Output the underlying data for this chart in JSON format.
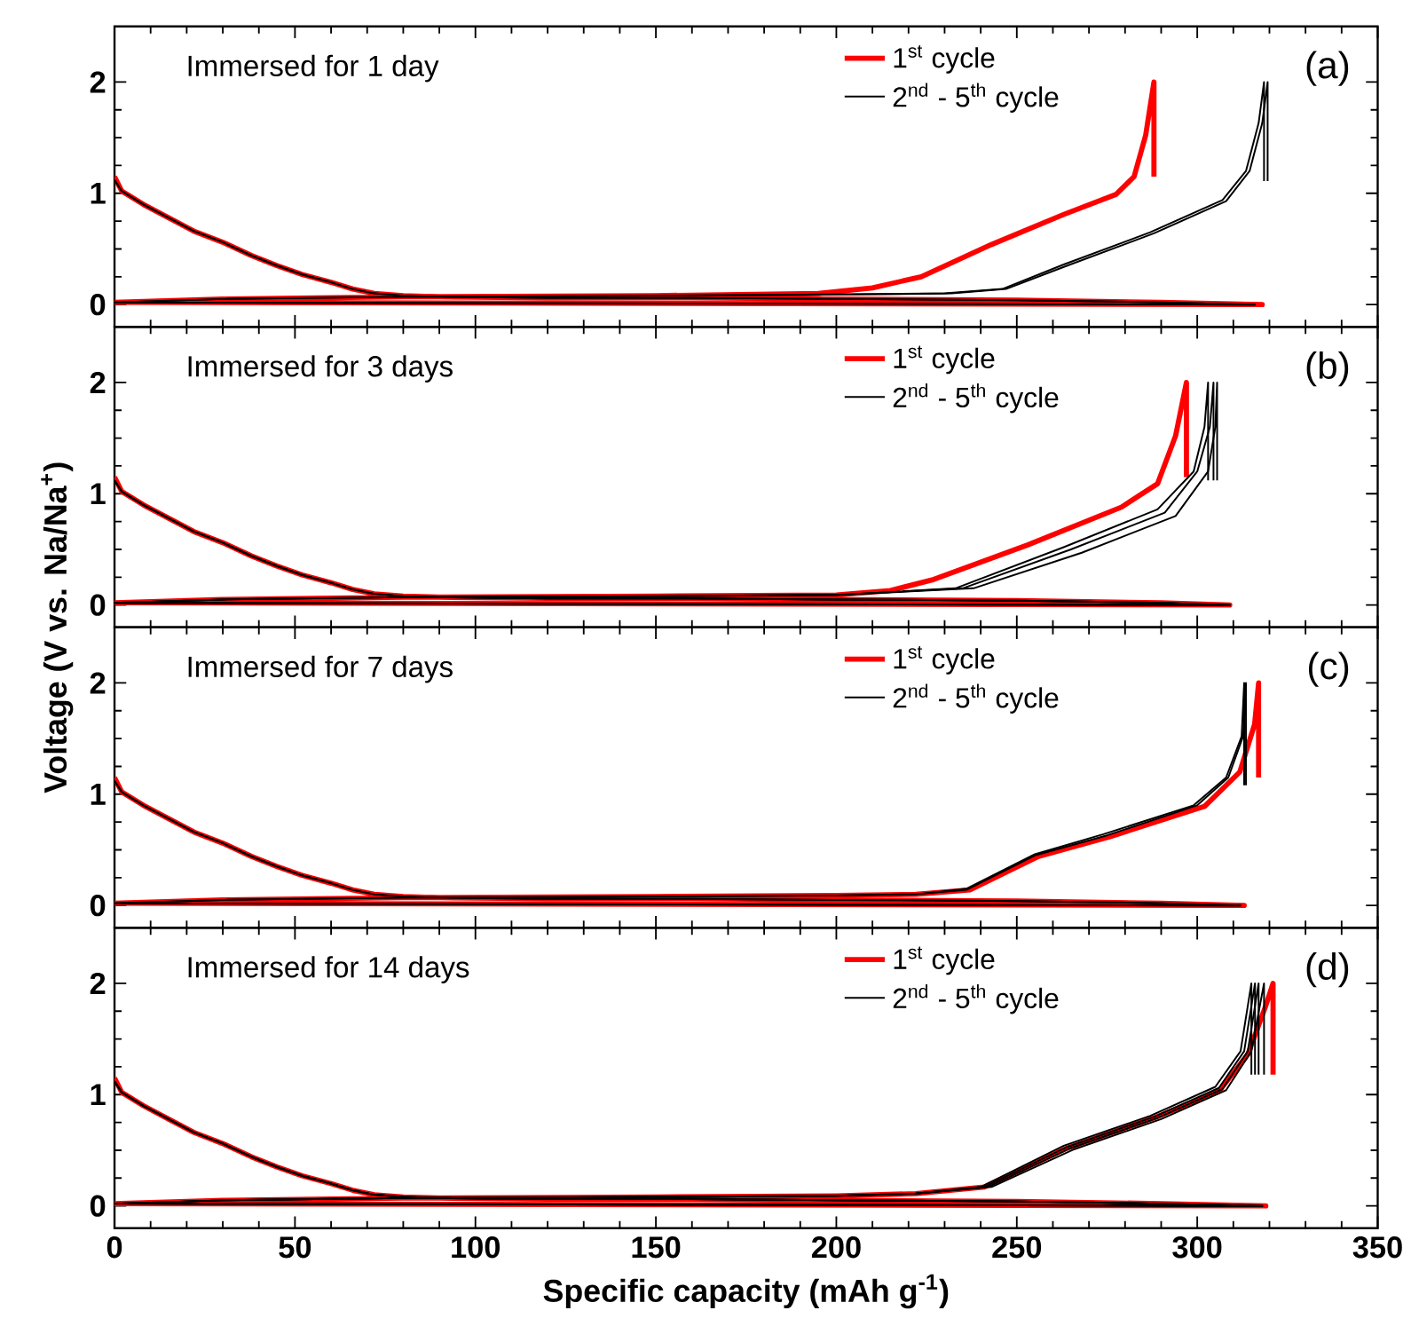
{
  "chart_data": [
    {
      "type": "line",
      "title": "Immersed for 1 day",
      "annotations": [
        "(a)"
      ],
      "xlim": [
        0,
        350
      ],
      "ylim": [
        -0.2,
        2.5
      ],
      "xticks": [
        0,
        50,
        100,
        150,
        200,
        250,
        300,
        350
      ],
      "yticks": [
        0,
        1,
        2
      ],
      "tick_labels": "y",
      "legend": "top right",
      "series": [
        {
          "name": "1$^{st}$ cycle",
          "color": "#ff0000",
          "x": [
            0,
            2,
            8,
            15,
            22,
            30,
            38,
            45,
            52,
            60,
            66,
            72,
            80,
            90,
            120,
            160,
            200,
            250,
            290,
            318,
            0,
            30,
            80,
            150,
            195,
            210,
            223.5,
            243,
            263,
            277.5,
            282.5,
            285.7,
            288,
            288
          ],
          "values": [
            1.15,
            1.02,
            0.9,
            0.78,
            0.66,
            0.56,
            0.44,
            0.35,
            0.27,
            0.2,
            0.14,
            0.1,
            0.08,
            0.07,
            0.06,
            0.06,
            0.05,
            0.04,
            0.02,
            0,
            0.02,
            0.05,
            0.07,
            0.08,
            0.1,
            0.15,
            0.25,
            0.54,
            0.81,
            0.99,
            1.15,
            1.52,
            2.0,
            1.15
          ]
        },
        {
          "name": "2$^{nd}$ - 5$^{th}$ cycle",
          "color": "#000000",
          "x": [
            0,
            2,
            8,
            15,
            22,
            30,
            38,
            45,
            52,
            60,
            66,
            72,
            80,
            90,
            120,
            160,
            200,
            250,
            290,
            316,
            0,
            30,
            80,
            150,
            200,
            230,
            246,
            263,
            287,
            307,
            313.5,
            317,
            318.5,
            318.5
          ],
          "values": [
            1.12,
            1.02,
            0.9,
            0.78,
            0.66,
            0.56,
            0.44,
            0.35,
            0.27,
            0.2,
            0.14,
            0.1,
            0.08,
            0.07,
            0.06,
            0.06,
            0.05,
            0.04,
            0.02,
            0,
            0.02,
            0.05,
            0.07,
            0.08,
            0.09,
            0.1,
            0.14,
            0.36,
            0.65,
            0.94,
            1.2,
            1.63,
            2.0,
            1.11
          ]
        },
        {
          "color": "#000000",
          "x": [
            0,
            2,
            8,
            15,
            22,
            30,
            38,
            45,
            52,
            60,
            66,
            72,
            80,
            90,
            120,
            160,
            200,
            250,
            290,
            316,
            0,
            30,
            80,
            150,
            200,
            232,
            247,
            264,
            288,
            308,
            314.5,
            318,
            319.5,
            319.5
          ],
          "values": [
            1.12,
            1.02,
            0.9,
            0.78,
            0.66,
            0.56,
            0.44,
            0.35,
            0.27,
            0.2,
            0.14,
            0.1,
            0.08,
            0.07,
            0.06,
            0.06,
            0.05,
            0.04,
            0.02,
            0,
            0.02,
            0.05,
            0.07,
            0.08,
            0.09,
            0.1,
            0.14,
            0.35,
            0.64,
            0.93,
            1.2,
            1.63,
            2.0,
            1.11
          ]
        }
      ]
    },
    {
      "type": "line",
      "title": "Immersed for 3 days",
      "annotations": [
        "(b)"
      ],
      "ylabel": "Voltage (V vs. Na/Na$^{+}$)",
      "xlim": [
        0,
        350
      ],
      "ylim": [
        -0.2,
        2.5
      ],
      "xticks": [
        0,
        50,
        100,
        150,
        200,
        250,
        300,
        350
      ],
      "yticks": [
        0,
        1,
        2
      ],
      "tick_labels": "y",
      "legend": "top right",
      "series": [
        {
          "name": "1$^{st}$ cycle",
          "color": "#ff0000",
          "x": [
            0,
            2,
            8,
            15,
            22,
            30,
            38,
            45,
            52,
            60,
            66,
            72,
            80,
            90,
            120,
            160,
            200,
            250,
            290,
            309,
            0,
            30,
            80,
            150,
            200,
            215,
            227,
            253,
            279,
            289,
            294,
            297,
            297
          ],
          "values": [
            1.15,
            1.02,
            0.9,
            0.78,
            0.66,
            0.56,
            0.44,
            0.35,
            0.27,
            0.2,
            0.14,
            0.1,
            0.08,
            0.07,
            0.06,
            0.06,
            0.05,
            0.04,
            0.02,
            0,
            0.02,
            0.05,
            0.07,
            0.08,
            0.09,
            0.13,
            0.23,
            0.54,
            0.88,
            1.09,
            1.52,
            2.0,
            1.15
          ]
        },
        {
          "name": "2$^{nd}$ - 5$^{th}$ cycle",
          "color": "#000000",
          "x": [
            0,
            2,
            8,
            15,
            22,
            30,
            38,
            45,
            52,
            60,
            66,
            72,
            80,
            90,
            120,
            160,
            200,
            250,
            290,
            309,
            0,
            30,
            80,
            150,
            200,
            233,
            263,
            289,
            299,
            302,
            303,
            303
          ],
          "values": [
            1.12,
            1.02,
            0.9,
            0.78,
            0.66,
            0.56,
            0.44,
            0.35,
            0.27,
            0.2,
            0.14,
            0.1,
            0.08,
            0.07,
            0.06,
            0.06,
            0.05,
            0.04,
            0.02,
            0,
            0.02,
            0.05,
            0.07,
            0.08,
            0.09,
            0.15,
            0.52,
            0.86,
            1.2,
            1.6,
            2.0,
            1.12
          ]
        },
        {
          "color": "#000000",
          "x": [
            0,
            2,
            8,
            15,
            22,
            30,
            38,
            45,
            52,
            60,
            66,
            72,
            80,
            90,
            120,
            160,
            200,
            250,
            290,
            309,
            0,
            30,
            80,
            150,
            200,
            235,
            265,
            291,
            300,
            303.5,
            304.5,
            304.5
          ],
          "values": [
            1.12,
            1.02,
            0.9,
            0.78,
            0.66,
            0.56,
            0.44,
            0.35,
            0.27,
            0.2,
            0.14,
            0.1,
            0.08,
            0.07,
            0.06,
            0.06,
            0.05,
            0.04,
            0.02,
            0,
            0.02,
            0.05,
            0.07,
            0.08,
            0.09,
            0.15,
            0.5,
            0.83,
            1.2,
            1.6,
            2.0,
            1.12
          ]
        },
        {
          "color": "#000000",
          "x": [
            0,
            2,
            8,
            15,
            22,
            30,
            38,
            45,
            52,
            60,
            66,
            72,
            80,
            90,
            120,
            160,
            200,
            250,
            290,
            309,
            0,
            30,
            80,
            150,
            200,
            238,
            268,
            294,
            303,
            305,
            305.5,
            305.5
          ],
          "values": [
            1.12,
            1.02,
            0.9,
            0.78,
            0.66,
            0.56,
            0.44,
            0.35,
            0.27,
            0.2,
            0.14,
            0.1,
            0.08,
            0.07,
            0.06,
            0.06,
            0.05,
            0.04,
            0.02,
            0,
            0.02,
            0.05,
            0.07,
            0.08,
            0.09,
            0.15,
            0.47,
            0.8,
            1.2,
            1.6,
            2.0,
            1.12
          ]
        }
      ]
    },
    {
      "type": "line",
      "title": "Immersed for 7 days",
      "annotations": [
        "(c)"
      ],
      "xlim": [
        0,
        350
      ],
      "ylim": [
        -0.2,
        2.5
      ],
      "xticks": [
        0,
        50,
        100,
        150,
        200,
        250,
        300,
        350
      ],
      "yticks": [
        0,
        1,
        2
      ],
      "tick_labels": "y",
      "legend": "top right",
      "series": [
        {
          "name": "1$^{st}$ cycle",
          "color": "#ff0000",
          "x": [
            0,
            2,
            8,
            15,
            22,
            30,
            38,
            45,
            52,
            60,
            66,
            72,
            80,
            90,
            120,
            160,
            200,
            250,
            290,
            313,
            0,
            30,
            80,
            150,
            200,
            222,
            237,
            256,
            276,
            302,
            311.8,
            315.9,
            317,
            317
          ],
          "values": [
            1.15,
            1.02,
            0.9,
            0.78,
            0.66,
            0.56,
            0.44,
            0.35,
            0.27,
            0.2,
            0.14,
            0.1,
            0.08,
            0.07,
            0.06,
            0.06,
            0.05,
            0.04,
            0.02,
            0,
            0.02,
            0.05,
            0.07,
            0.08,
            0.09,
            0.1,
            0.14,
            0.44,
            0.62,
            0.89,
            1.2,
            1.63,
            2.0,
            1.15
          ]
        },
        {
          "name": "2$^{nd}$ - 5$^{th}$ cycle",
          "color": "#000000",
          "x": [
            0,
            2,
            8,
            15,
            22,
            30,
            38,
            45,
            52,
            60,
            66,
            72,
            80,
            90,
            120,
            160,
            200,
            250,
            290,
            312,
            0,
            30,
            80,
            150,
            200,
            222,
            236,
            255,
            275,
            300,
            308.6,
            312.7,
            313.5,
            313.5
          ],
          "values": [
            1.12,
            1.02,
            0.9,
            0.78,
            0.66,
            0.56,
            0.44,
            0.35,
            0.27,
            0.2,
            0.14,
            0.1,
            0.08,
            0.07,
            0.06,
            0.06,
            0.05,
            0.04,
            0.02,
            0,
            0.02,
            0.05,
            0.07,
            0.08,
            0.09,
            0.1,
            0.14,
            0.45,
            0.63,
            0.9,
            1.15,
            1.52,
            2.0,
            1.08
          ]
        },
        {
          "color": "#000000",
          "x": [
            0,
            2,
            8,
            15,
            22,
            30,
            38,
            45,
            52,
            60,
            66,
            72,
            80,
            90,
            120,
            160,
            200,
            250,
            290,
            312,
            0,
            30,
            80,
            150,
            200,
            222,
            236,
            255,
            274,
            299,
            308,
            312.3,
            313,
            313
          ],
          "values": [
            1.12,
            1.02,
            0.9,
            0.78,
            0.66,
            0.56,
            0.44,
            0.35,
            0.27,
            0.2,
            0.14,
            0.1,
            0.08,
            0.07,
            0.06,
            0.06,
            0.05,
            0.04,
            0.02,
            0,
            0.02,
            0.05,
            0.07,
            0.08,
            0.09,
            0.1,
            0.15,
            0.46,
            0.64,
            0.9,
            1.15,
            1.52,
            2.0,
            1.08
          ]
        }
      ]
    },
    {
      "type": "line",
      "title": "Immersed for 14 days",
      "annotations": [
        "(d)"
      ],
      "xlabel": "Specific capacity (mAh g$^{-1}$)",
      "xlim": [
        0,
        350
      ],
      "ylim": [
        -0.2,
        2.5
      ],
      "xticks": [
        0,
        50,
        100,
        150,
        200,
        250,
        300,
        350
      ],
      "yticks": [
        0,
        1,
        2
      ],
      "legend": "top right",
      "series": [
        {
          "name": "1$^{st}$ cycle",
          "color": "#ff0000",
          "x": [
            0,
            2,
            8,
            15,
            22,
            30,
            38,
            45,
            52,
            60,
            66,
            72,
            80,
            90,
            120,
            160,
            200,
            250,
            290,
            319,
            0,
            30,
            80,
            150,
            200,
            222,
            241,
            264,
            288,
            306,
            314,
            319,
            321,
            321
          ],
          "values": [
            1.15,
            1.02,
            0.9,
            0.78,
            0.66,
            0.56,
            0.44,
            0.35,
            0.27,
            0.2,
            0.14,
            0.1,
            0.08,
            0.07,
            0.06,
            0.06,
            0.05,
            0.04,
            0.02,
            0,
            0.02,
            0.05,
            0.07,
            0.08,
            0.09,
            0.11,
            0.17,
            0.52,
            0.79,
            1.03,
            1.36,
            1.8,
            2.0,
            1.18
          ]
        },
        {
          "name": "2$^{nd}$ - 5$^{th}$ cycle",
          "color": "#000000",
          "x": [
            0,
            2,
            8,
            15,
            22,
            30,
            38,
            45,
            52,
            60,
            66,
            72,
            80,
            90,
            120,
            160,
            200,
            250,
            290,
            318,
            0,
            30,
            80,
            150,
            200,
            222,
            240,
            263,
            287,
            305,
            312,
            315,
            315
          ],
          "values": [
            1.12,
            1.02,
            0.9,
            0.78,
            0.66,
            0.56,
            0.44,
            0.35,
            0.27,
            0.2,
            0.14,
            0.1,
            0.08,
            0.07,
            0.06,
            0.06,
            0.05,
            0.04,
            0.02,
            0,
            0.02,
            0.05,
            0.07,
            0.08,
            0.09,
            0.11,
            0.17,
            0.54,
            0.81,
            1.07,
            1.39,
            2.0,
            1.18
          ]
        },
        {
          "color": "#000000",
          "x": [
            0,
            2,
            8,
            15,
            22,
            30,
            38,
            45,
            52,
            60,
            66,
            72,
            80,
            90,
            120,
            160,
            200,
            250,
            290,
            318,
            0,
            30,
            80,
            150,
            200,
            222,
            241,
            264,
            288,
            306,
            313,
            316,
            316
          ],
          "values": [
            1.12,
            1.02,
            0.9,
            0.78,
            0.66,
            0.56,
            0.44,
            0.35,
            0.27,
            0.2,
            0.14,
            0.1,
            0.08,
            0.07,
            0.06,
            0.06,
            0.05,
            0.04,
            0.02,
            0,
            0.02,
            0.05,
            0.07,
            0.08,
            0.09,
            0.11,
            0.17,
            0.53,
            0.8,
            1.06,
            1.39,
            2.0,
            1.18
          ]
        },
        {
          "color": "#000000",
          "x": [
            0,
            2,
            8,
            15,
            22,
            30,
            38,
            45,
            52,
            60,
            66,
            72,
            80,
            90,
            120,
            160,
            200,
            250,
            290,
            318,
            0,
            30,
            80,
            150,
            200,
            222,
            242,
            265,
            289,
            307,
            314,
            317,
            317
          ],
          "values": [
            1.12,
            1.02,
            0.9,
            0.78,
            0.66,
            0.56,
            0.44,
            0.35,
            0.27,
            0.2,
            0.14,
            0.1,
            0.08,
            0.07,
            0.06,
            0.06,
            0.05,
            0.04,
            0.02,
            0,
            0.02,
            0.05,
            0.07,
            0.08,
            0.09,
            0.11,
            0.17,
            0.52,
            0.79,
            1.05,
            1.39,
            2.0,
            1.18
          ]
        },
        {
          "color": "#000000",
          "x": [
            0,
            2,
            8,
            15,
            22,
            30,
            38,
            45,
            52,
            60,
            66,
            72,
            80,
            90,
            120,
            160,
            200,
            250,
            290,
            318,
            0,
            30,
            80,
            150,
            200,
            222,
            243,
            266,
            290,
            308,
            315,
            318.5,
            318.5
          ],
          "values": [
            1.12,
            1.02,
            0.9,
            0.78,
            0.66,
            0.56,
            0.44,
            0.35,
            0.27,
            0.2,
            0.14,
            0.1,
            0.08,
            0.07,
            0.06,
            0.06,
            0.05,
            0.04,
            0.02,
            0,
            0.02,
            0.05,
            0.07,
            0.08,
            0.09,
            0.11,
            0.17,
            0.51,
            0.78,
            1.04,
            1.39,
            2.0,
            1.18
          ]
        }
      ]
    }
  ]
}
